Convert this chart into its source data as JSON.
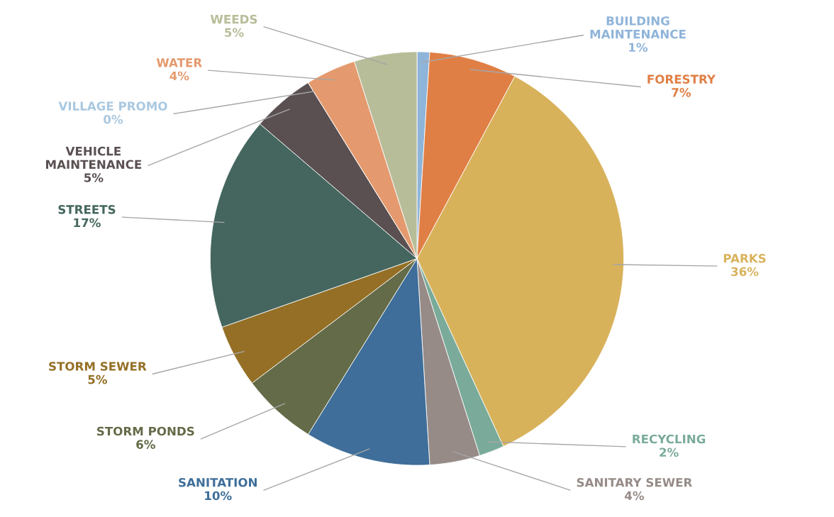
{
  "chart_data": {
    "type": "pie",
    "categories": [
      "BUILDING\nMAINTENANCE",
      "FORESTRY",
      "PARKS",
      "RECYCLING",
      "SANITARY SEWER",
      "SANITATION",
      "STORM PONDS",
      "STORM SEWER",
      "STREETS",
      "VEHICLE\nMAINTENANCE",
      "VILLAGE PROMO",
      "WATER",
      "WEEDS"
    ],
    "values": [
      1,
      7,
      36,
      2,
      4,
      10,
      6,
      5,
      17,
      5,
      0,
      4,
      5
    ],
    "value_labels": [
      "1%",
      "7%",
      "36%",
      "2%",
      "4%",
      "10%",
      "6%",
      "5%",
      "17%",
      "5%",
      "0%",
      "4%",
      "5%"
    ],
    "colors": [
      "#8fb4d9",
      "#e07f45",
      "#d8b25b",
      "#7aab9a",
      "#968b87",
      "#3e6e99",
      "#636b48",
      "#946f25",
      "#44665e",
      "#5a5052",
      "#a9c8e0",
      "#e49a6e",
      "#b8bd99"
    ]
  }
}
